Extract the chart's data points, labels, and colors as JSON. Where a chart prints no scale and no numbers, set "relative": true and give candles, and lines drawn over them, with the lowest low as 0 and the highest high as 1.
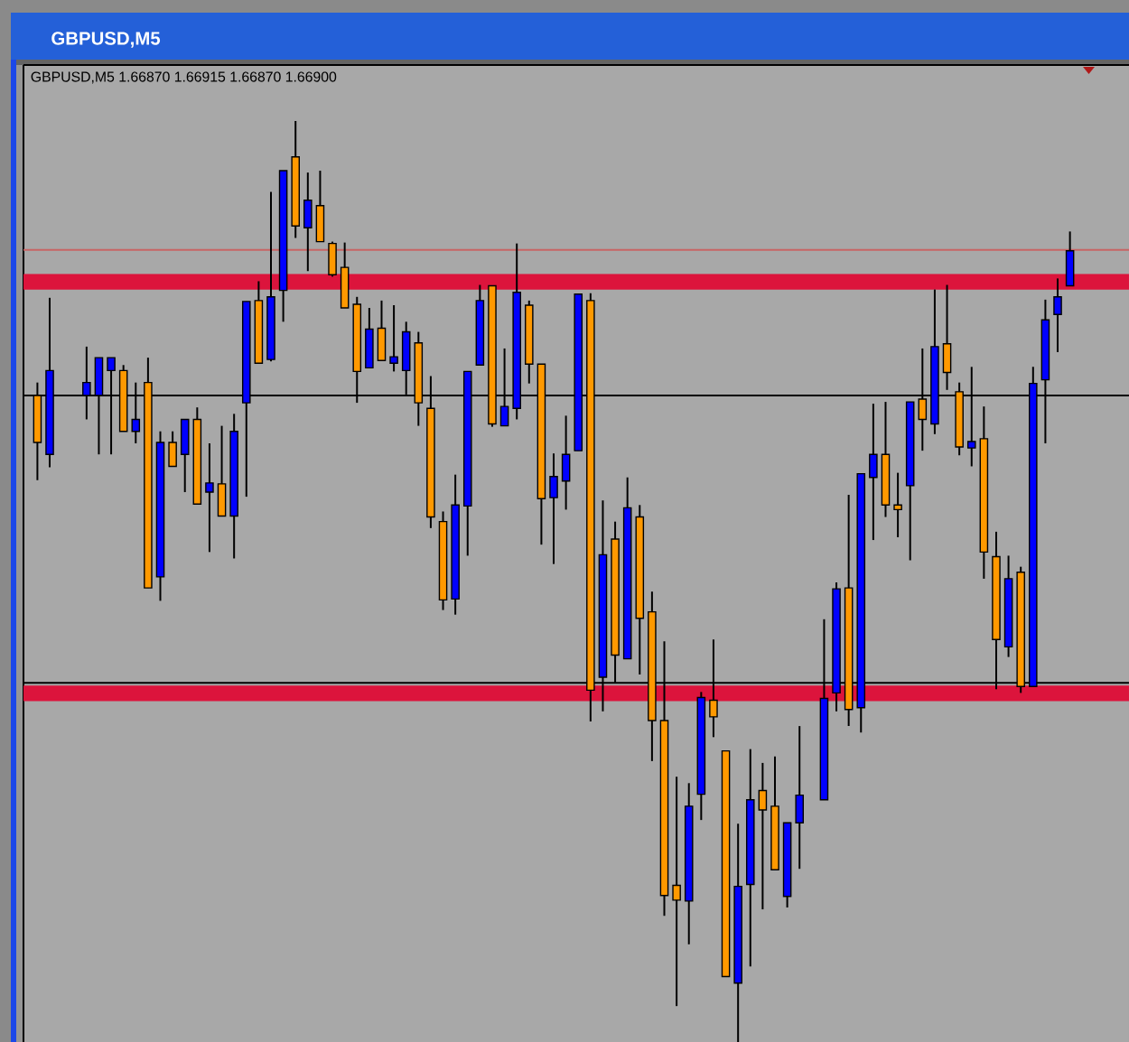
{
  "chart_data": {
    "type": "candlestick",
    "title": "GBPUSD,M5",
    "subtitle": "GBPUSD,M5 1.66870 1.66915 1.66870 1.66900",
    "relative": true,
    "categories": [
      null,
      null,
      null,
      null,
      null,
      null,
      null,
      null,
      null,
      null,
      null,
      null,
      null,
      null,
      null,
      null,
      null,
      null,
      null,
      null,
      null,
      null,
      null,
      null,
      null,
      null,
      null,
      null,
      null,
      null,
      null,
      null,
      null,
      null,
      null,
      null,
      null,
      null,
      null,
      null,
      null,
      null,
      null,
      null,
      null,
      null,
      null,
      null,
      null,
      null,
      null,
      null,
      null,
      null,
      null,
      null,
      null,
      null,
      null,
      null,
      null,
      null,
      null,
      null,
      null,
      null,
      null,
      null,
      null,
      null,
      null,
      null,
      null,
      null,
      null,
      null,
      null,
      null,
      null,
      null,
      null,
      null,
      null,
      null,
      null
    ],
    "ohlc": [
      [
        0.702,
        0.716,
        0.61,
        0.651
      ],
      [
        0.638,
        0.808,
        0.624,
        0.729
      ],
      null,
      null,
      [
        0.702,
        0.755,
        0.676,
        0.716
      ],
      [
        0.702,
        0.743,
        0.638,
        0.743
      ],
      [
        0.729,
        0.743,
        0.638,
        0.743
      ],
      [
        0.729,
        0.735,
        0.663,
        0.663
      ],
      [
        0.663,
        0.716,
        0.65,
        0.676
      ],
      [
        0.716,
        0.743,
        0.493,
        0.493
      ],
      [
        0.505,
        0.663,
        0.479,
        0.651
      ],
      [
        0.651,
        0.663,
        0.625,
        0.625
      ],
      [
        0.638,
        0.676,
        0.597,
        0.676
      ],
      [
        0.676,
        0.689,
        0.584,
        0.584
      ],
      [
        0.597,
        0.65,
        0.532,
        0.607
      ],
      [
        0.606,
        0.669,
        0.571,
        0.571
      ],
      [
        0.571,
        0.682,
        0.525,
        0.663
      ],
      [
        0.694,
        0.804,
        0.592,
        0.804
      ],
      [
        0.805,
        0.826,
        0.737,
        0.737
      ],
      [
        0.741,
        0.923,
        0.739,
        0.809
      ],
      [
        0.816,
        0.946,
        0.782,
        0.946
      ],
      [
        0.961,
        1.0,
        0.873,
        0.886
      ],
      [
        0.884,
        0.944,
        0.837,
        0.914
      ],
      [
        0.908,
        0.946,
        0.869,
        0.869
      ],
      [
        0.867,
        0.869,
        0.831,
        0.833
      ],
      [
        0.841,
        0.868,
        0.797,
        0.797
      ],
      [
        0.801,
        0.809,
        0.694,
        0.728
      ],
      [
        0.732,
        0.797,
        0.732,
        0.774
      ],
      [
        0.775,
        0.805,
        0.74,
        0.74
      ],
      [
        0.737,
        0.8,
        0.728,
        0.744
      ],
      [
        0.729,
        0.782,
        0.703,
        0.771
      ],
      [
        0.759,
        0.771,
        0.669,
        0.694
      ],
      [
        0.688,
        0.723,
        0.558,
        0.57
      ],
      [
        0.565,
        0.576,
        0.469,
        0.48
      ],
      [
        0.481,
        0.616,
        0.464,
        0.583
      ],
      [
        0.582,
        0.728,
        0.528,
        0.728
      ],
      [
        0.735,
        0.822,
        0.735,
        0.805
      ],
      [
        0.821,
        0.821,
        0.668,
        0.671
      ],
      [
        0.669,
        0.753,
        0.669,
        0.69
      ],
      [
        0.688,
        0.867,
        0.676,
        0.814
      ],
      [
        0.8,
        0.805,
        0.715,
        0.736
      ],
      [
        0.736,
        0.736,
        0.54,
        0.59
      ],
      [
        0.591,
        0.639,
        0.519,
        0.614
      ],
      [
        0.609,
        0.68,
        0.578,
        0.638
      ],
      [
        0.642,
        0.812,
        0.642,
        0.812
      ],
      [
        0.805,
        0.813,
        0.348,
        0.382
      ],
      [
        0.396,
        0.588,
        0.359,
        0.529
      ],
      [
        0.546,
        0.565,
        0.39,
        0.42
      ],
      [
        0.416,
        0.613,
        0.416,
        0.58
      ],
      [
        0.57,
        0.583,
        0.399,
        0.46
      ],
      [
        0.467,
        0.489,
        0.305,
        0.349
      ],
      [
        0.349,
        0.435,
        0.137,
        0.159
      ],
      [
        0.17,
        0.288,
        0.039,
        0.154
      ],
      [
        0.153,
        0.281,
        0.106,
        0.256
      ],
      [
        0.269,
        0.38,
        0.241,
        0.374
      ],
      [
        0.371,
        0.437,
        0.331,
        0.353
      ],
      [
        0.316,
        0.316,
        0.071,
        0.071
      ],
      [
        0.064,
        0.237,
        0.0,
        0.169
      ],
      [
        0.171,
        0.318,
        0.082,
        0.263
      ],
      [
        0.273,
        0.303,
        0.144,
        0.252
      ],
      [
        0.256,
        0.31,
        0.187,
        0.187
      ],
      [
        0.158,
        0.238,
        0.146,
        0.238
      ],
      [
        0.238,
        0.343,
        0.188,
        0.268
      ],
      null,
      [
        0.263,
        0.459,
        0.263,
        0.373
      ],
      [
        0.379,
        0.499,
        0.359,
        0.492
      ],
      [
        0.493,
        0.594,
        0.343,
        0.361
      ],
      [
        0.363,
        0.617,
        0.336,
        0.617
      ],
      [
        0.613,
        0.693,
        0.545,
        0.638
      ],
      [
        0.638,
        0.695,
        0.57,
        0.583
      ],
      [
        0.583,
        0.618,
        0.548,
        0.578
      ],
      [
        0.604,
        0.695,
        0.523,
        0.695
      ],
      [
        0.698,
        0.753,
        0.642,
        0.676
      ],
      [
        0.671,
        0.817,
        0.66,
        0.755
      ],
      [
        0.758,
        0.822,
        0.708,
        0.727
      ],
      [
        0.706,
        0.716,
        0.637,
        0.646
      ],
      [
        0.645,
        0.733,
        0.625,
        0.652
      ],
      [
        0.655,
        0.69,
        0.503,
        0.532
      ],
      [
        0.527,
        0.554,
        0.383,
        0.437
      ],
      [
        0.429,
        0.528,
        0.418,
        0.503
      ],
      [
        0.51,
        0.516,
        0.379,
        0.386
      ],
      [
        0.386,
        0.733,
        0.386,
        0.715
      ],
      [
        0.719,
        0.806,
        0.65,
        0.784
      ],
      [
        0.79,
        0.829,
        0.749,
        0.809
      ],
      [
        0.821,
        0.88,
        0.821,
        0.859
      ]
    ],
    "colors": [
      "#ff9900",
      "#0000ff",
      null,
      null,
      "#0000ff",
      "#0000ff",
      "#0000ff",
      "#ff9900",
      "#0000ff",
      "#ff9900",
      "#0000ff",
      "#ff9900",
      "#0000ff",
      "#ff9900",
      "#0000ff",
      "#ff9900",
      "#0000ff",
      "#0000ff",
      "#ff9900",
      "#0000ff",
      "#0000ff",
      "#ff9900",
      "#0000ff",
      "#ff9900",
      "#ff9900",
      "#ff9900",
      "#ff9900",
      "#0000ff",
      "#ff9900",
      "#0000ff",
      "#0000ff",
      "#ff9900",
      "#ff9900",
      "#ff9900",
      "#0000ff",
      "#0000ff",
      "#0000ff",
      "#ff9900",
      "#0000ff",
      "#0000ff",
      "#ff9900",
      "#ff9900",
      "#0000ff",
      "#0000ff",
      "#0000ff",
      "#ff9900",
      "#0000ff",
      "#ff9900",
      "#0000ff",
      "#ff9900",
      "#ff9900",
      "#ff9900",
      "#ff9900",
      "#0000ff",
      "#0000ff",
      "#ff9900",
      "#ff9900",
      "#0000ff",
      "#0000ff",
      "#ff9900",
      "#ff9900",
      "#0000ff",
      "#0000ff",
      null,
      "#0000ff",
      "#0000ff",
      "#ff9900",
      "#0000ff",
      "#0000ff",
      "#ff9900",
      "#ff9900",
      "#0000ff",
      "#ff9900",
      "#0000ff",
      "#ff9900",
      "#ff9900",
      "#0000ff",
      "#ff9900",
      "#ff9900",
      "#0000ff",
      "#ff9900",
      "#0000ff",
      "#0000ff",
      "#0000ff",
      "#0000ff"
    ],
    "ref_lines": [
      {
        "axis": "y",
        "value": 0.86,
        "color": "#c86464"
      },
      {
        "axis": "y",
        "value": 0.702,
        "color": "#000000"
      },
      {
        "axis": "y",
        "value": 0.39,
        "color": "#000000"
      }
    ],
    "bands": [
      {
        "axis": "y",
        "from": 0.817,
        "to": 0.834,
        "color": "#dc143c"
      },
      {
        "axis": "y",
        "from": 0.37,
        "to": 0.387,
        "color": "#dc143c"
      }
    ]
  }
}
